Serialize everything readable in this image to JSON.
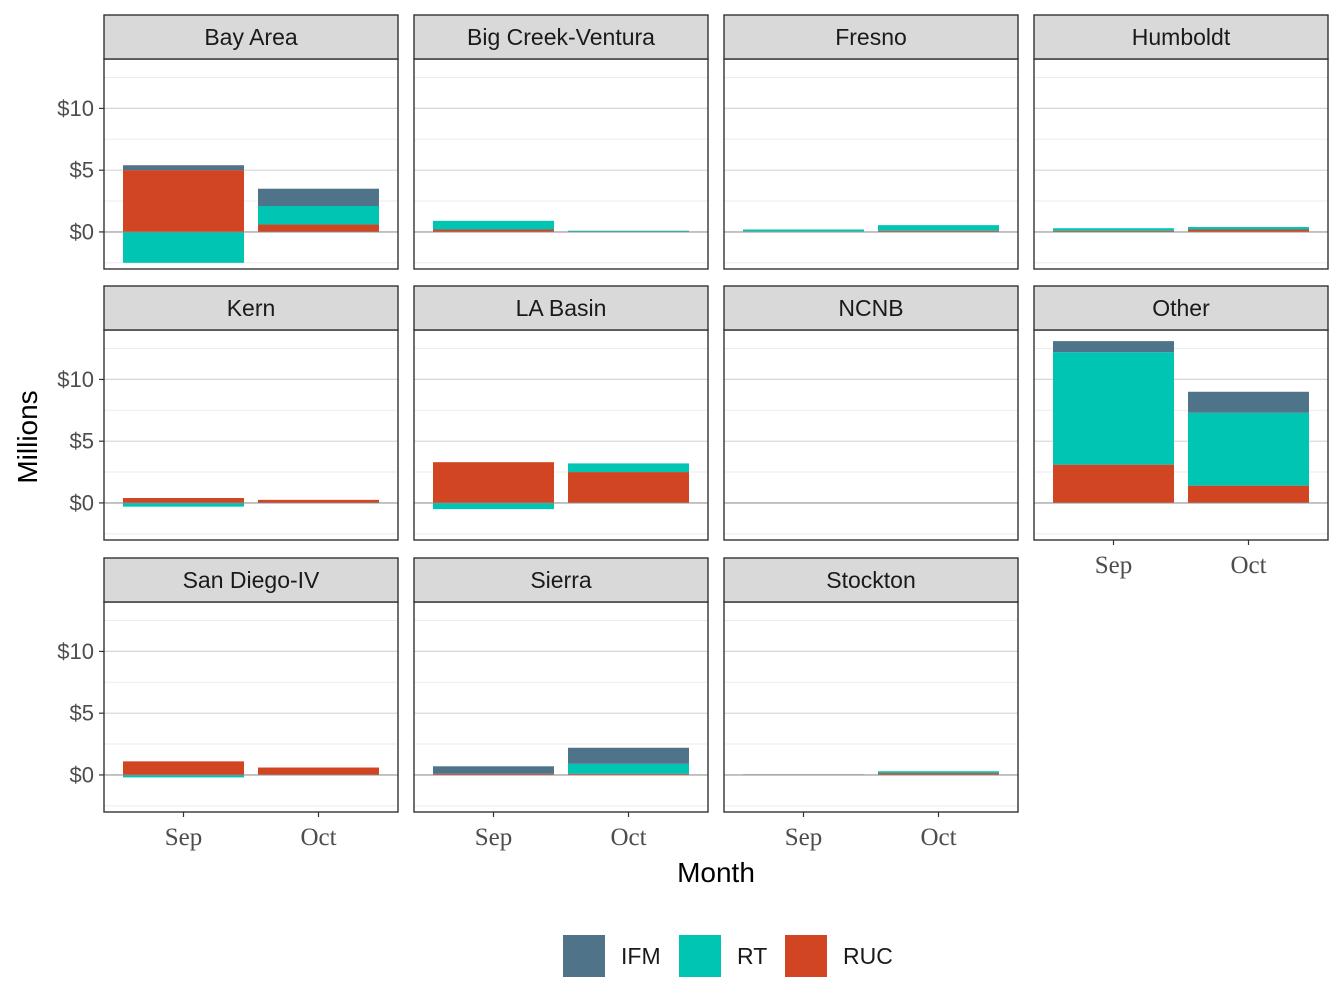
{
  "chart_data": {
    "type": "bar",
    "stacked": true,
    "faceted": true,
    "xlabel": "Month",
    "ylabel": "Millions",
    "categories": [
      "Sep",
      "Oct"
    ],
    "ylim": [
      -3,
      14
    ],
    "yticks": [
      0,
      5,
      10
    ],
    "ytick_labels": [
      "$0",
      "$5",
      "$10"
    ],
    "grid": true,
    "legend_position": "bottom",
    "series_names": [
      "IFM",
      "RT",
      "RUC"
    ],
    "colors": {
      "IFM": "#4f7489",
      "RT": "#00c5b2",
      "RUC": "#d24522"
    },
    "facets": [
      {
        "name": "Bay Area",
        "data": {
          "Sep": {
            "IFM": 0.4,
            "RT": -2.5,
            "RUC": 5.0
          },
          "Oct": {
            "IFM": 1.4,
            "RT": 1.5,
            "RUC": 0.6
          }
        }
      },
      {
        "name": "Big Creek-Ventura",
        "data": {
          "Sep": {
            "IFM": 0.0,
            "RT": 0.7,
            "RUC": 0.2
          },
          "Oct": {
            "IFM": 0.0,
            "RT": 0.1,
            "RUC": 0.0
          }
        }
      },
      {
        "name": "Fresno",
        "data": {
          "Sep": {
            "IFM": 0.0,
            "RT": 0.15,
            "RUC": 0.05
          },
          "Oct": {
            "IFM": 0.0,
            "RT": 0.45,
            "RUC": 0.1
          }
        }
      },
      {
        "name": "Humboldt",
        "data": {
          "Sep": {
            "IFM": 0.0,
            "RT": 0.2,
            "RUC": 0.1
          },
          "Oct": {
            "IFM": 0.0,
            "RT": 0.2,
            "RUC": 0.2
          }
        }
      },
      {
        "name": "Kern",
        "data": {
          "Sep": {
            "IFM": 0.0,
            "RT": -0.3,
            "RUC": 0.4
          },
          "Oct": {
            "IFM": 0.0,
            "RT": 0.0,
            "RUC": 0.25
          }
        }
      },
      {
        "name": "LA Basin",
        "data": {
          "Sep": {
            "IFM": 0.0,
            "RT": -0.5,
            "RUC": 3.3
          },
          "Oct": {
            "IFM": 0.0,
            "RT": 0.7,
            "RUC": 2.5
          }
        }
      },
      {
        "name": "NCNB",
        "data": {
          "Sep": {
            "IFM": 0.0,
            "RT": 0.0,
            "RUC": 0.0
          },
          "Oct": {
            "IFM": 0.0,
            "RT": 0.0,
            "RUC": 0.0
          }
        }
      },
      {
        "name": "Other",
        "data": {
          "Sep": {
            "IFM": 0.9,
            "RT": 9.1,
            "RUC": 3.1
          },
          "Oct": {
            "IFM": 1.7,
            "RT": 5.9,
            "RUC": 1.4
          }
        }
      },
      {
        "name": "San Diego-IV",
        "data": {
          "Sep": {
            "IFM": 0.0,
            "RT": -0.2,
            "RUC": 1.1
          },
          "Oct": {
            "IFM": 0.0,
            "RT": 0.0,
            "RUC": 0.6
          }
        }
      },
      {
        "name": "Sierra",
        "data": {
          "Sep": {
            "IFM": 0.6,
            "RT": 0.0,
            "RUC": 0.1
          },
          "Oct": {
            "IFM": 1.3,
            "RT": 0.8,
            "RUC": 0.1
          }
        }
      },
      {
        "name": "Stockton",
        "data": {
          "Sep": {
            "IFM": 0.05,
            "RT": 0.0,
            "RUC": 0.0
          },
          "Oct": {
            "IFM": 0.0,
            "RT": 0.15,
            "RUC": 0.15
          }
        }
      }
    ]
  }
}
